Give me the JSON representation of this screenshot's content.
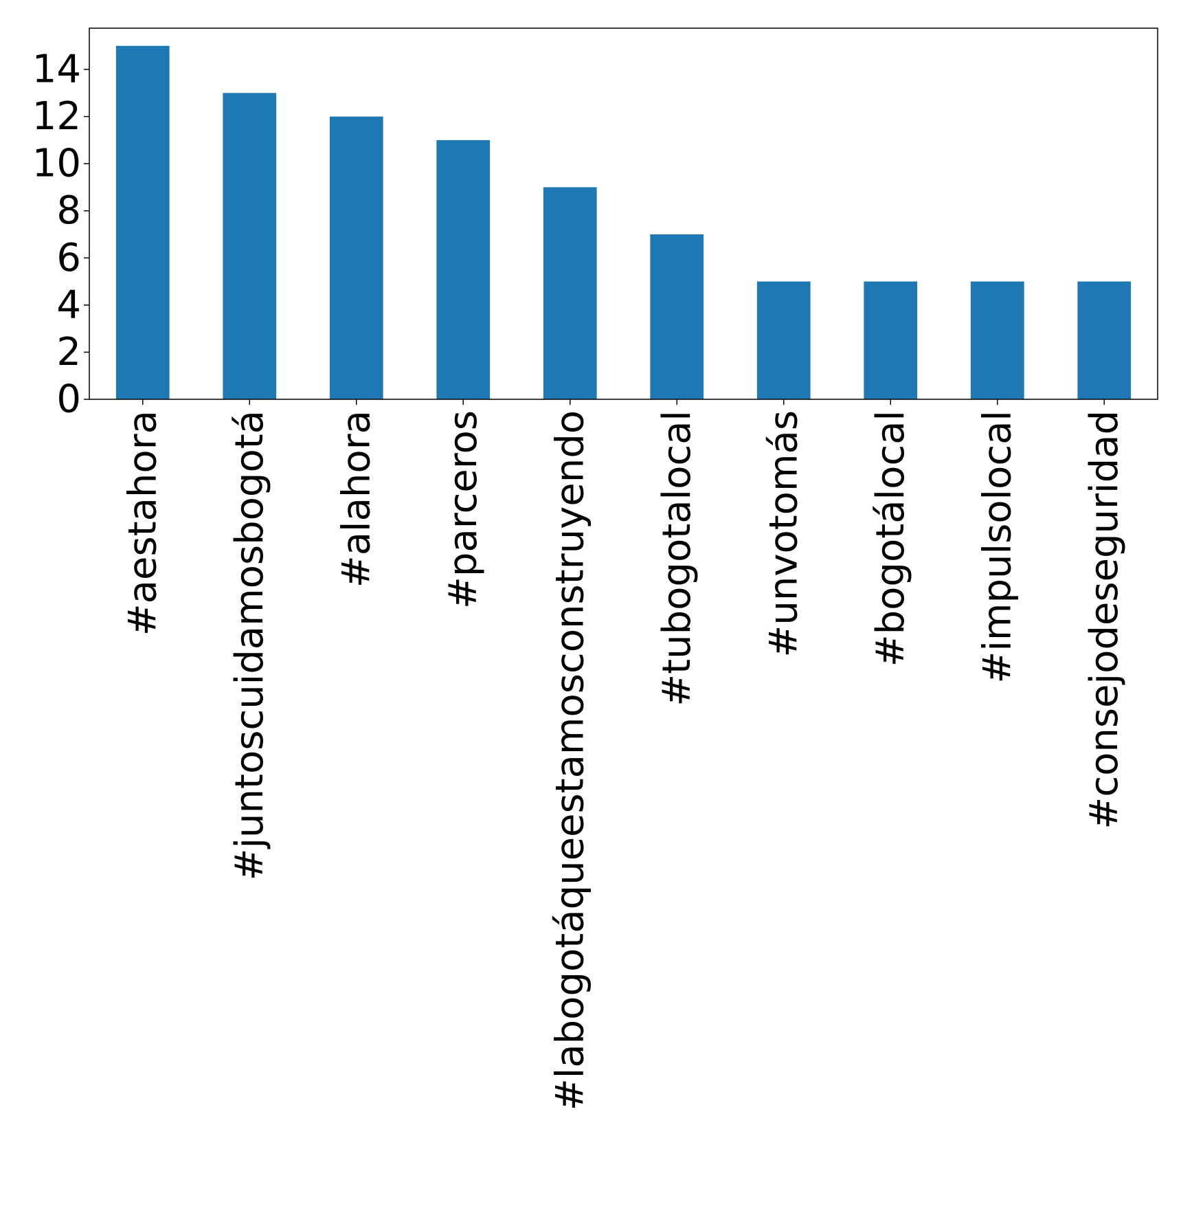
{
  "chart_data": {
    "type": "bar",
    "categories": [
      "#aestahora",
      "#juntoscuidamosbogotá",
      "#alahora",
      "#parceros",
      "#labogotáqueestamosconstruyendo",
      "#tubogotalocal",
      "#unvotomás",
      "#bogotálocal",
      "#impulsolocal",
      "#consejodeseguridad"
    ],
    "values": [
      15,
      13,
      12,
      11,
      9,
      7,
      5,
      5,
      5,
      5
    ],
    "title": "",
    "xlabel": "",
    "ylabel": "",
    "ylim": [
      0,
      15.75
    ],
    "yticks": [
      "0",
      "2",
      "4",
      "6",
      "8",
      "10",
      "12",
      "14"
    ],
    "grid": false,
    "bar_color": "#1f77b4"
  }
}
